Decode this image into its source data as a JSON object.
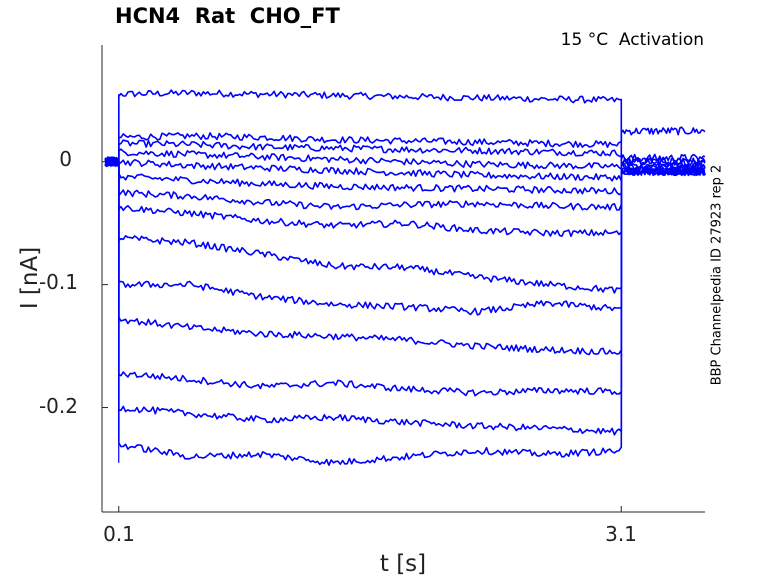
{
  "chart_data": {
    "type": "line",
    "title": "HCN4  Rat  CHO_FT",
    "annotation": "15 °C  Activation",
    "side_label": "BBP Channelpedia ID 27923 rep 2",
    "xlabel": "t [s]",
    "ylabel": "I [nA]",
    "xlim": [
      0.0,
      3.6
    ],
    "ylim": [
      -0.285,
      0.095
    ],
    "x_ticks": [
      0.1,
      3.1
    ],
    "x_tick_labels": [
      "0.1",
      "3.1"
    ],
    "y_ticks": [
      0,
      -0.1,
      -0.2
    ],
    "y_tick_labels": [
      "0",
      "-0.1",
      "-0.2"
    ],
    "step_start": 0.1,
    "step_end": 3.1,
    "series_color": "#0000ff",
    "grid": false,
    "series": [
      {
        "level": [
          0.055,
          0.056,
          0.055,
          0.054,
          0.053,
          0.052,
          0.051,
          0.05
        ],
        "tail": 0.0
      },
      {
        "level": [
          0.02,
          0.021,
          0.02,
          0.018,
          0.017,
          0.016,
          0.015,
          0.014
        ],
        "tail": 0.025
      },
      {
        "level": [
          0.015,
          0.014,
          0.012,
          0.011,
          0.01,
          0.009,
          0.008,
          0.007
        ],
        "tail": 0.003
      },
      {
        "level": [
          0.008,
          0.006,
          0.004,
          0.002,
          0.0,
          -0.002,
          -0.003,
          -0.004
        ],
        "tail": 0.0
      },
      {
        "level": [
          0.0,
          -0.003,
          -0.005,
          -0.007,
          -0.009,
          -0.011,
          -0.012,
          -0.013
        ],
        "tail": -0.004
      },
      {
        "level": [
          -0.012,
          -0.015,
          -0.018,
          -0.02,
          -0.021,
          -0.022,
          -0.023,
          -0.024
        ],
        "tail": -0.004
      },
      {
        "level": [
          -0.025,
          -0.028,
          -0.033,
          -0.037,
          -0.035,
          -0.034,
          -0.036,
          -0.037
        ],
        "tail": -0.006
      },
      {
        "level": [
          -0.037,
          -0.042,
          -0.048,
          -0.052,
          -0.05,
          -0.056,
          -0.058,
          -0.058
        ],
        "tail": -0.008
      },
      {
        "level": [
          -0.062,
          -0.066,
          -0.075,
          -0.085,
          -0.086,
          -0.094,
          -0.1,
          -0.105
        ],
        "tail": -0.008
      },
      {
        "level": [
          -0.1,
          -0.1,
          -0.11,
          -0.116,
          -0.118,
          -0.122,
          -0.115,
          -0.12
        ],
        "tail": -0.008
      },
      {
        "level": [
          -0.128,
          -0.135,
          -0.14,
          -0.142,
          -0.145,
          -0.15,
          -0.153,
          -0.155
        ],
        "tail": -0.008
      },
      {
        "level": [
          -0.172,
          -0.177,
          -0.183,
          -0.18,
          -0.185,
          -0.188,
          -0.186,
          -0.187
        ],
        "tail": -0.008
      },
      {
        "level": [
          -0.2,
          -0.205,
          -0.21,
          -0.208,
          -0.212,
          -0.215,
          -0.217,
          -0.22
        ],
        "tail": -0.008
      },
      {
        "level": [
          -0.23,
          -0.24,
          -0.238,
          -0.245,
          -0.24,
          -0.235,
          -0.238,
          -0.235
        ],
        "tail": -0.008
      }
    ]
  }
}
